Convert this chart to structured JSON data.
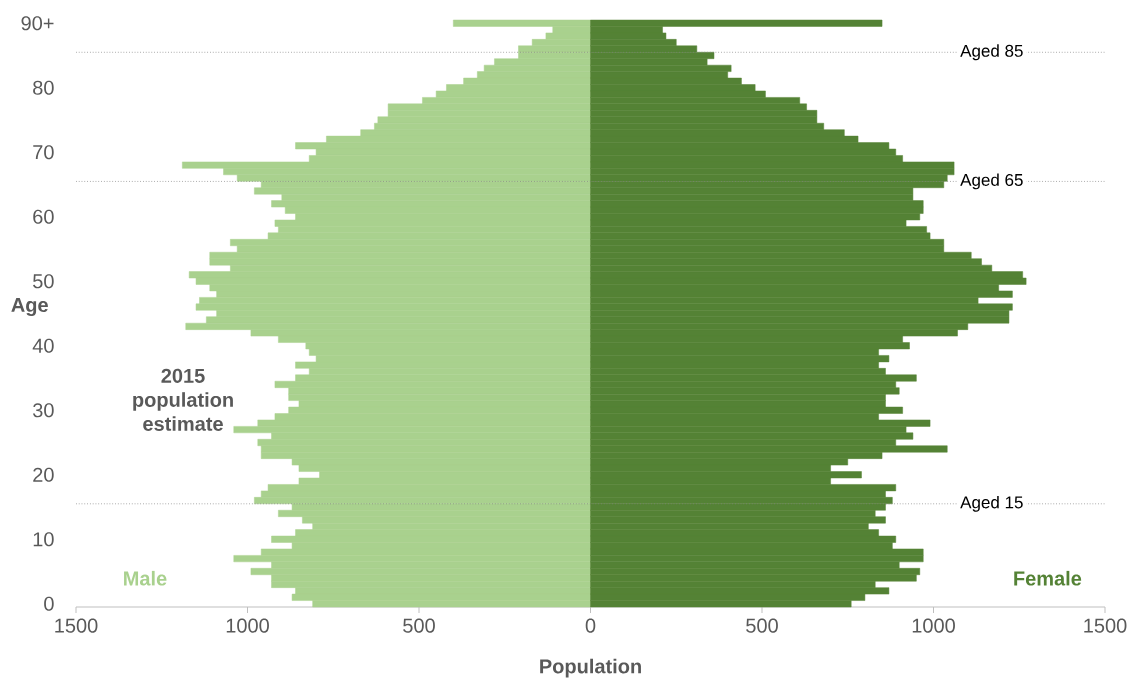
{
  "chart_data": {
    "type": "bar",
    "orientation": "horizontal",
    "xlabel": "Population",
    "ylabel": "Age",
    "categories": [
      "90+",
      null,
      null,
      null,
      null,
      null,
      null,
      null,
      null,
      null,
      "80",
      null,
      null,
      null,
      null,
      null,
      null,
      null,
      null,
      null,
      "70",
      null,
      null,
      null,
      null,
      null,
      null,
      null,
      null,
      null,
      "60",
      null,
      null,
      null,
      null,
      null,
      null,
      null,
      null,
      null,
      "50",
      null,
      null,
      null,
      null,
      null,
      null,
      null,
      null,
      null,
      "40",
      null,
      null,
      null,
      null,
      null,
      null,
      null,
      null,
      null,
      "30",
      null,
      null,
      null,
      null,
      null,
      null,
      null,
      null,
      null,
      "20",
      null,
      null,
      null,
      null,
      null,
      null,
      null,
      null,
      null,
      "10",
      null,
      null,
      null,
      null,
      null,
      null,
      null,
      null,
      null,
      "0"
    ],
    "series": [
      {
        "name": "Male",
        "color": "#a9d18e",
        "values": [
          -400,
          -110,
          -130,
          -170,
          -210,
          -210,
          -280,
          -310,
          -330,
          -370,
          -420,
          -450,
          -490,
          -590,
          -590,
          -620,
          -630,
          -670,
          -770,
          -860,
          -800,
          -820,
          -1190,
          -1070,
          -1030,
          -960,
          -980,
          -900,
          -930,
          -890,
          -860,
          -920,
          -910,
          -940,
          -1050,
          -1030,
          -1110,
          -1110,
          -1050,
          -1170,
          -1150,
          -1110,
          -1090,
          -1140,
          -1150,
          -1090,
          -1120,
          -1180,
          -990,
          -910,
          -830,
          -820,
          -800,
          -860,
          -820,
          -860,
          -920,
          -880,
          -880,
          -850,
          -880,
          -920,
          -970,
          -1040,
          -930,
          -970,
          -960,
          -960,
          -870,
          -850,
          -790,
          -850,
          -940,
          -960,
          -980,
          -870,
          -910,
          -840,
          -810,
          -860,
          -930,
          -870,
          -960,
          -1040,
          -930,
          -990,
          -930,
          -930,
          -860,
          -870,
          -810
        ]
      },
      {
        "name": "Female",
        "color": "#548235",
        "values": [
          850,
          210,
          220,
          250,
          310,
          360,
          340,
          410,
          400,
          440,
          480,
          510,
          610,
          630,
          660,
          660,
          680,
          740,
          780,
          870,
          890,
          910,
          1060,
          1060,
          1040,
          1030,
          940,
          940,
          970,
          970,
          960,
          920,
          980,
          990,
          1030,
          1030,
          1110,
          1140,
          1170,
          1260,
          1270,
          1190,
          1230,
          1130,
          1230,
          1220,
          1220,
          1100,
          1070,
          910,
          930,
          840,
          870,
          840,
          860,
          950,
          890,
          900,
          860,
          860,
          910,
          840,
          990,
          920,
          940,
          890,
          1040,
          850,
          750,
          700,
          790,
          700,
          890,
          860,
          880,
          860,
          830,
          860,
          810,
          840,
          890,
          880,
          970,
          970,
          900,
          960,
          950,
          830,
          870,
          800,
          760
        ]
      }
    ],
    "xlim": [
      -1500,
      1500
    ],
    "xticks": [
      {
        "value": -1500,
        "label": "1500"
      },
      {
        "value": -1000,
        "label": "1000"
      },
      {
        "value": -500,
        "label": "500"
      },
      0,
      500,
      1000,
      1500
    ],
    "stacked": true,
    "annotations": [
      "2015 population estimate",
      "Aged 85",
      "Aged 65",
      "Aged 15"
    ]
  }
}
